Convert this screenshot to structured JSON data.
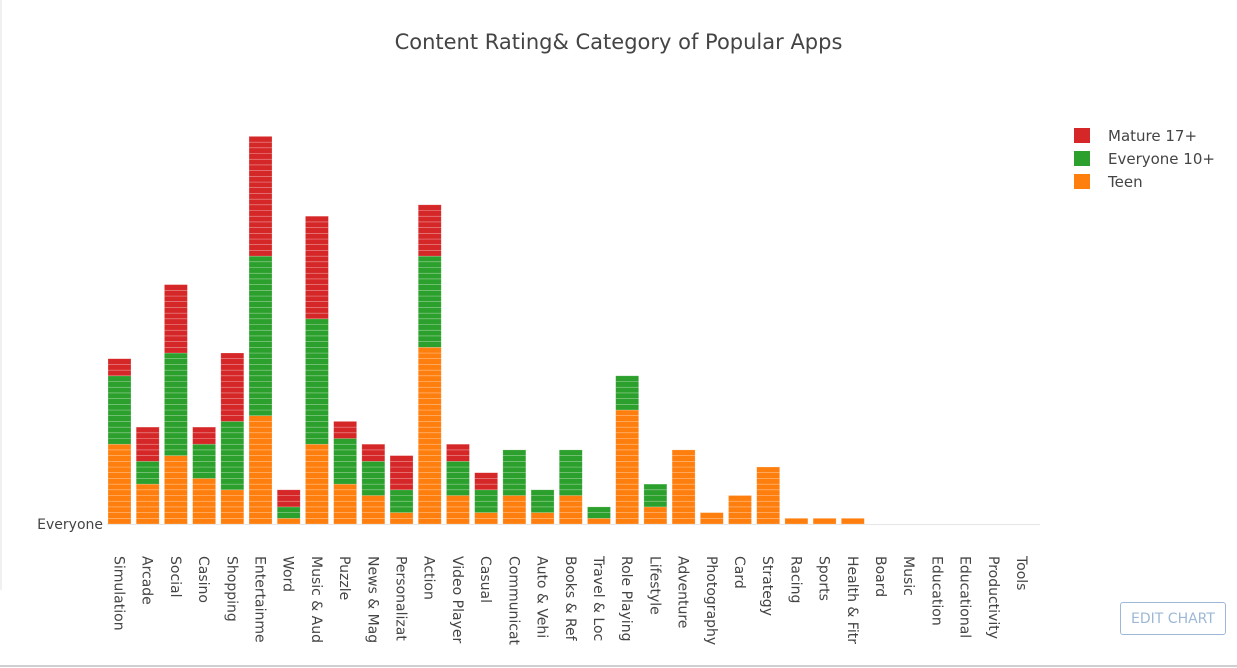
{
  "page": {
    "edit_button_label": "EDIT CHART"
  },
  "chart_data": {
    "type": "bar",
    "stacked": true,
    "title": "Content Rating& Category of Popular Apps",
    "xlabel": "",
    "ylabel": "",
    "y_axis_tick_label": "Everyone",
    "categories": [
      "Simulation",
      "Arcade",
      "Social",
      "Casino",
      "Shopping",
      "Entertainme",
      "Word",
      "Music & Aud",
      "Puzzle",
      "News & Mag",
      "Personalizat",
      "Action",
      "Video Player",
      "Casual",
      "Communicat",
      "Auto & Vehi",
      "Books & Ref",
      "Travel & Loc",
      "Role Playing",
      "Lifestyle",
      "Adventure",
      "Photography",
      "Card",
      "Strategy",
      "Racing",
      "Sports",
      "Health & Fitr",
      "Board",
      "Music",
      "Education",
      "Educational",
      "Productivity",
      "Tools"
    ],
    "series": [
      {
        "name": "Teen",
        "color": "#ff7f0e",
        "values": [
          14,
          7,
          12,
          8,
          6,
          19,
          1,
          14,
          7,
          5,
          2,
          31,
          5,
          2,
          5,
          2,
          5,
          1,
          20,
          3,
          13,
          2,
          5,
          10,
          1,
          1,
          1,
          0,
          0,
          0,
          0,
          0,
          0
        ]
      },
      {
        "name": "Everyone 10+",
        "color": "#2ca02c",
        "values": [
          12,
          4,
          18,
          6,
          12,
          28,
          2,
          22,
          8,
          6,
          4,
          16,
          6,
          4,
          8,
          4,
          8,
          2,
          6,
          4,
          0,
          0,
          0,
          0,
          0,
          0,
          0,
          0,
          0,
          0,
          0,
          0,
          0
        ]
      },
      {
        "name": "Mature 17+",
        "color": "#d62728",
        "values": [
          3,
          6,
          12,
          3,
          12,
          21,
          3,
          18,
          3,
          3,
          6,
          9,
          3,
          3,
          0,
          0,
          0,
          0,
          0,
          0,
          0,
          0,
          0,
          0,
          0,
          0,
          0,
          0,
          0,
          0,
          0,
          0,
          0
        ]
      }
    ],
    "legend_order": [
      "Mature 17+",
      "Everyone 10+",
      "Teen"
    ],
    "legend_position": "top-right",
    "grid": false
  }
}
